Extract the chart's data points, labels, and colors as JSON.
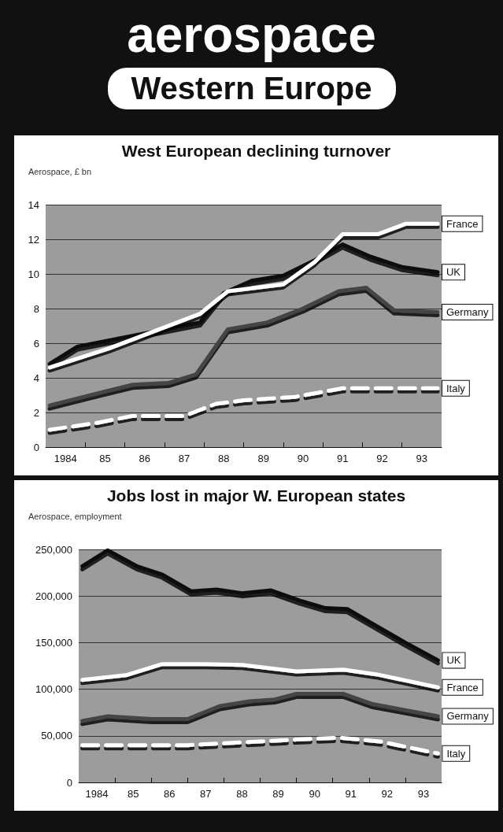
{
  "chart_data": [
    {
      "type": "line",
      "title": "West European declining turnover",
      "ylabel": "Aerospace, £ bn",
      "annotations": [
        "aerospace",
        "Western Europe"
      ],
      "marker": "none",
      "grid": "y",
      "xlim": [
        1983.5,
        1993.5
      ],
      "xticks": [
        1984,
        {
          "value": 1985,
          "label": "85"
        },
        {
          "value": 1986,
          "label": "86"
        },
        {
          "value": 1987,
          "label": "87"
        },
        {
          "value": 1988,
          "label": "88"
        },
        {
          "value": 1989,
          "label": "89"
        },
        {
          "value": 1990,
          "label": "90"
        },
        {
          "value": 1991,
          "label": "91"
        },
        {
          "value": 1992,
          "label": "92"
        },
        {
          "value": 1993,
          "label": "93"
        },
        {
          "value": 1984.5,
          "label": null
        },
        {
          "value": 1985.5,
          "label": null
        },
        {
          "value": 1986.5,
          "label": null
        },
        {
          "value": 1987.5,
          "label": null
        },
        {
          "value": 1988.5,
          "label": null
        },
        {
          "value": 1989.5,
          "label": null
        },
        {
          "value": 1990.5,
          "label": null
        },
        {
          "value": 1991.5,
          "label": null
        },
        {
          "value": 1992.5,
          "label": null
        }
      ],
      "ylim": [
        0,
        14
      ],
      "yticks": [
        0,
        2,
        4,
        6,
        8,
        10,
        12,
        14
      ],
      "series": [
        {
          "name": "France",
          "color": "#ffffff",
          "x": [
            1983.6,
            1985.1,
            1987.4,
            1988.1,
            1989.5,
            1990.3,
            1991.0,
            1991.9,
            1992.6,
            1993.4
          ],
          "values": [
            4.6,
            5.7,
            7.7,
            9.0,
            9.4,
            10.7,
            12.3,
            12.3,
            12.9,
            12.9
          ]
        },
        {
          "name": "UK",
          "color": "#111111",
          "x": [
            1983.6,
            1984.3,
            1987.4,
            1988.0,
            1988.7,
            1989.5,
            1990.3,
            1991.0,
            1991.7,
            1992.5,
            1993.4
          ],
          "values": [
            4.8,
            5.8,
            7.2,
            8.9,
            9.6,
            9.9,
            10.8,
            11.7,
            11.0,
            10.4,
            10.1
          ]
        },
        {
          "name": "Germany",
          "color": "#444444",
          "x": [
            1983.6,
            1984.8,
            1985.7,
            1986.6,
            1987.3,
            1988.1,
            1989.1,
            1990.0,
            1990.9,
            1991.6,
            1992.3,
            1993.4
          ],
          "values": [
            2.4,
            3.1,
            3.6,
            3.7,
            4.2,
            6.8,
            7.2,
            8.0,
            9.0,
            9.2,
            7.9,
            7.8
          ]
        },
        {
          "name": "Italy",
          "color": "#ffffff",
          "line_style": "dashed",
          "x": [
            1983.6,
            1984.8,
            1985.7,
            1987.0,
            1987.8,
            1988.5,
            1989.8,
            1991.0,
            1993.4
          ],
          "values": [
            1.0,
            1.4,
            1.8,
            1.8,
            2.5,
            2.7,
            2.9,
            3.4,
            3.4
          ]
        }
      ]
    },
    {
      "type": "line",
      "title": "Jobs lost in major W. European states",
      "ylabel": "Aerospace, employment",
      "marker": "none",
      "grid": "y",
      "xlim": [
        1983.5,
        1993.5
      ],
      "xticks": [
        1984,
        {
          "value": 1985,
          "label": "85"
        },
        {
          "value": 1986,
          "label": "86"
        },
        {
          "value": 1987,
          "label": "87"
        },
        {
          "value": 1988,
          "label": "88"
        },
        {
          "value": 1989,
          "label": "89"
        },
        {
          "value": 1990,
          "label": "90"
        },
        {
          "value": 1991,
          "label": "91"
        },
        {
          "value": 1992,
          "label": "92"
        },
        {
          "value": 1993,
          "label": "93"
        },
        {
          "value": 1984.5,
          "label": null
        },
        {
          "value": 1985.5,
          "label": null
        },
        {
          "value": 1986.5,
          "label": null
        },
        {
          "value": 1987.5,
          "label": null
        },
        {
          "value": 1988.5,
          "label": null
        },
        {
          "value": 1989.5,
          "label": null
        },
        {
          "value": 1990.5,
          "label": null
        },
        {
          "value": 1991.5,
          "label": null
        },
        {
          "value": 1992.5,
          "label": null
        }
      ],
      "ylim": [
        0,
        250000
      ],
      "yticks": [
        0,
        {
          "value": 50000,
          "label": "50,000"
        },
        {
          "value": 100000,
          "label": "100,000"
        },
        {
          "value": 150000,
          "label": "150,000"
        },
        {
          "value": 200000,
          "label": "200,000"
        },
        {
          "value": 250000,
          "label": "250,000"
        }
      ],
      "series": [
        {
          "name": "UK",
          "color": "#111111",
          "x": [
            1983.6,
            1984.3,
            1985.1,
            1985.8,
            1986.6,
            1987.3,
            1988.0,
            1988.8,
            1989.6,
            1990.3,
            1990.9,
            1991.7,
            1992.5,
            1993.4
          ],
          "values": [
            232000,
            249000,
            232000,
            223000,
            205000,
            207000,
            203000,
            206000,
            195000,
            187000,
            186000,
            168000,
            150000,
            131000
          ]
        },
        {
          "name": "France",
          "color": "#ffffff",
          "x": [
            1983.6,
            1984.8,
            1985.8,
            1987.0,
            1988.0,
            1989.5,
            1990.8,
            1991.7,
            1993.4
          ],
          "values": [
            110000,
            115000,
            127000,
            127000,
            126000,
            119000,
            121000,
            116000,
            102000
          ]
        },
        {
          "name": "Germany",
          "color": "#444444",
          "x": [
            1983.6,
            1984.3,
            1985.5,
            1986.5,
            1987.4,
            1988.2,
            1988.9,
            1989.5,
            1990.8,
            1991.6,
            1993.4
          ],
          "values": [
            66000,
            71000,
            68000,
            68000,
            82000,
            87000,
            89000,
            95000,
            95000,
            84000,
            71000
          ]
        },
        {
          "name": "Italy",
          "color": "#ffffff",
          "line_style": "dashed",
          "x": [
            1983.6,
            1986.5,
            1989.5,
            1990.7,
            1991.8,
            1993.4
          ],
          "values": [
            40000,
            40000,
            46000,
            48000,
            44000,
            31000
          ]
        }
      ]
    }
  ]
}
